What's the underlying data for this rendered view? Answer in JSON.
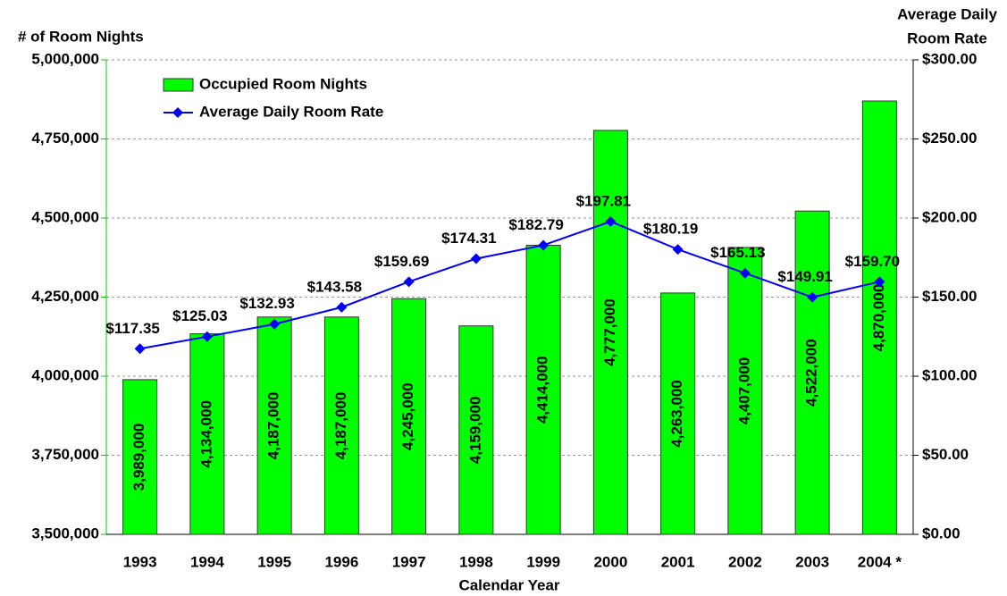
{
  "chart_data": {
    "type": "bar_line",
    "y_label": "# of Room Nights",
    "y2_label": [
      "Average Daily",
      "Room Rate"
    ],
    "x_label": "Calendar Year",
    "categories": [
      "1993",
      "1994",
      "1995",
      "1996",
      "1997",
      "1998",
      "1999",
      "2000",
      "2001",
      "2002",
      "2003",
      "2004 *"
    ],
    "series": [
      {
        "name": "Occupied Room Nights",
        "color": "#00ff00",
        "values": [
          3989000,
          4134000,
          4187000,
          4187000,
          4245000,
          4159000,
          4414000,
          4777000,
          4263000,
          4407000,
          4522000,
          4870000
        ],
        "value_labels": [
          "3,989,000",
          "4,134,000",
          "4,187,000",
          "4,187,000",
          "4,245,000",
          "4,159,000",
          "4,414,000",
          "4,777,000",
          "4,263,000",
          "4,407,000",
          "4,522,000",
          "4,870,000"
        ]
      },
      {
        "name": "Average Daily Room Rate",
        "color": "#0000ff",
        "axis": "y2",
        "values": [
          117.35,
          125.03,
          132.93,
          143.58,
          159.69,
          174.31,
          182.79,
          197.81,
          180.19,
          165.13,
          149.91,
          159.7
        ],
        "value_labels": [
          "$117.35",
          "$125.03",
          "$132.93",
          "$143.58",
          "$159.69",
          "$174.31",
          "$182.79",
          "$197.81",
          "$180.19",
          "$165.13",
          "$149.91",
          "$159.70"
        ]
      }
    ],
    "ylim": [
      3500000,
      5000000
    ],
    "yticks": [
      {
        "value": 3500000,
        "label": "3,500,000"
      },
      {
        "value": 3750000,
        "label": "3,750,000"
      },
      {
        "value": 4000000,
        "label": "4,000,000"
      },
      {
        "value": 4250000,
        "label": "4,250,000"
      },
      {
        "value": 4500000,
        "label": "4,500,000"
      },
      {
        "value": 4750000,
        "label": "4,750,000"
      },
      {
        "value": 5000000,
        "label": "5,000,000"
      }
    ],
    "y2lim": [
      0,
      300
    ],
    "y2ticks": [
      {
        "value": 0,
        "label": "$0.00"
      },
      {
        "value": 50,
        "label": "$50.00"
      },
      {
        "value": 100,
        "label": "$100.00"
      },
      {
        "value": 150,
        "label": "$150.00"
      },
      {
        "value": 200,
        "label": "$200.00"
      },
      {
        "value": 250,
        "label": "$250.00"
      },
      {
        "value": 300,
        "label": "$300.00"
      }
    ],
    "grid": true,
    "legend": "upper left"
  }
}
